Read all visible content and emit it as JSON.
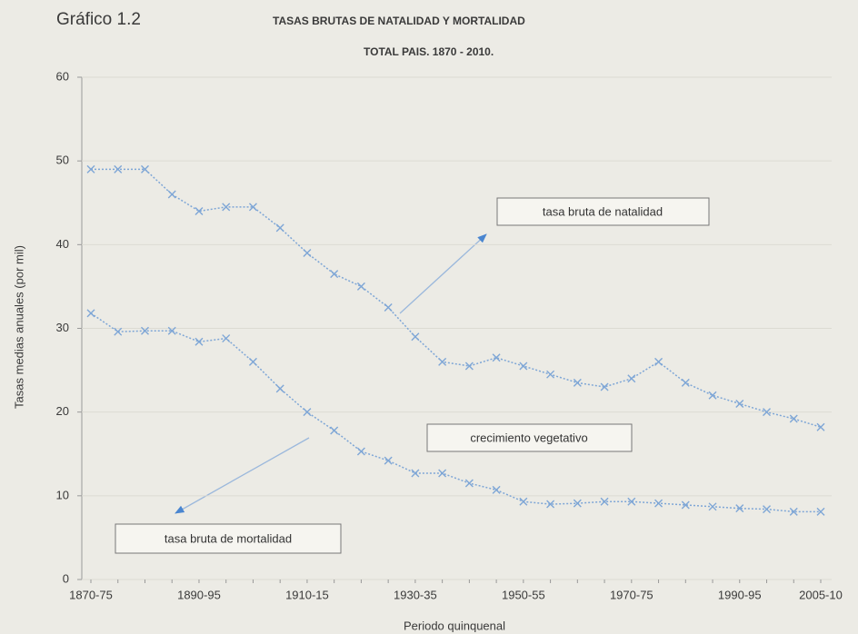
{
  "chart_data": {
    "type": "line",
    "figure_label": "Gráfico 1.2",
    "title": "TASAS BRUTAS DE NATALIDAD Y MORTALIDAD",
    "subtitle": "TOTAL PAIS. 1870 - 2010.",
    "y_label": "Tasas medias anuales (por mil)",
    "x_label": "Periodo quinquenal",
    "categories": [
      "1870-75",
      null,
      null,
      null,
      "1890-95",
      null,
      null,
      null,
      "1910-15",
      null,
      null,
      null,
      "1930-35",
      null,
      null,
      null,
      "1950-55",
      null,
      null,
      null,
      "1970-75",
      null,
      null,
      null,
      "1990-95",
      null,
      null,
      "2005-10"
    ],
    "series": [
      {
        "name": "tasa bruta de natalidad",
        "color": "#7ea6d6",
        "values": [
          49,
          49,
          49,
          46,
          44,
          44.5,
          44.5,
          42,
          39,
          36.5,
          35,
          32.5,
          29,
          26,
          25.5,
          26.5,
          25.5,
          24.5,
          23.5,
          23,
          24,
          26,
          23.5,
          22,
          21,
          20,
          19.2,
          18.2
        ]
      },
      {
        "name": "tasa bruta de mortalidad",
        "color": "#7ea6d6",
        "values": [
          31.8,
          29.6,
          29.7,
          29.7,
          28.4,
          28.8,
          26,
          22.8,
          20,
          17.8,
          15.3,
          14.2,
          12.7,
          12.7,
          11.5,
          10.7,
          9.3,
          9,
          9.1,
          9.3,
          9.3,
          9.1,
          8.9,
          8.7,
          8.5,
          8.4,
          8.1,
          8.1
        ]
      }
    ],
    "annotations": [
      "crecimiento vegetativo"
    ],
    "ylim": [
      0,
      60
    ],
    "yticks": [
      0,
      10,
      20,
      30,
      40,
      50,
      60
    ],
    "grid": true
  }
}
